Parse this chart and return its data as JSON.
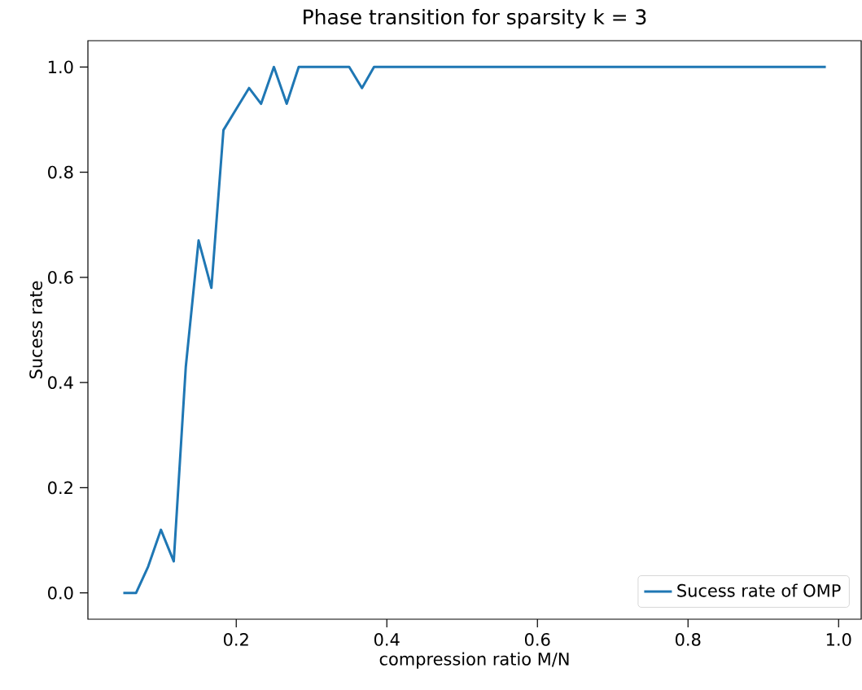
{
  "chart_data": {
    "type": "line",
    "title": "Phase transition for sparsity k = 3",
    "xlabel": "compression ratio M/N",
    "ylabel": "Sucess rate",
    "x": [
      0.05,
      0.067,
      0.083,
      0.1,
      0.117,
      0.133,
      0.15,
      0.167,
      0.183,
      0.2,
      0.217,
      0.233,
      0.25,
      0.267,
      0.283,
      0.3,
      0.317,
      0.333,
      0.35,
      0.367,
      0.383,
      0.4,
      0.417,
      0.433,
      0.45,
      0.467,
      0.483,
      0.5,
      0.517,
      0.533,
      0.55,
      0.567,
      0.583,
      0.6,
      0.617,
      0.633,
      0.65,
      0.667,
      0.683,
      0.7,
      0.717,
      0.733,
      0.75,
      0.767,
      0.783,
      0.8,
      0.817,
      0.833,
      0.85,
      0.867,
      0.883,
      0.9,
      0.917,
      0.933,
      0.95,
      0.967,
      0.983
    ],
    "series": [
      {
        "name": "Sucess rate of OMP",
        "color": "#1f77b4",
        "values": [
          0,
          0,
          0.05,
          0.12,
          0.06,
          0.43,
          0.67,
          0.58,
          0.88,
          0.92,
          0.96,
          0.93,
          1,
          0.93,
          1,
          1,
          1,
          1,
          1,
          0.96,
          1,
          1,
          1,
          1,
          1,
          1,
          1,
          1,
          1,
          1,
          1,
          1,
          1,
          1,
          1,
          1,
          1,
          1,
          1,
          1,
          1,
          1,
          1,
          1,
          1,
          1,
          1,
          1,
          1,
          1,
          1,
          1,
          1,
          1,
          1,
          1,
          1
        ]
      }
    ],
    "xlim": [
      0.003,
      1.03
    ],
    "ylim": [
      -0.05,
      1.05
    ],
    "xticks": [
      0.2,
      0.4,
      0.6,
      0.8,
      {
        "value": 1,
        "label": "1.0"
      }
    ],
    "yticks": [
      {
        "value": 0,
        "label": "0.0"
      },
      0.2,
      0.4,
      0.6,
      0.8,
      {
        "value": 1,
        "label": "1.0"
      }
    ],
    "grid": false,
    "legend": "bottom right"
  }
}
